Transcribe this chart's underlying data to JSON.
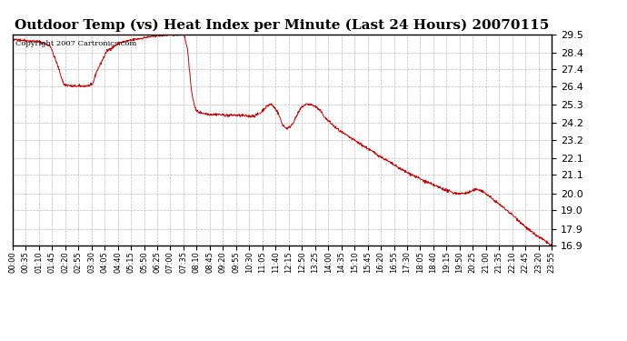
{
  "title": "Outdoor Temp (vs) Heat Index per Minute (Last 24 Hours) 20070115",
  "copyright_text": "Copyright 2007 Cartronics.com",
  "line_color": "#CC0000",
  "background_color": "#FFFFFF",
  "plot_bg_color": "#FFFFFF",
  "grid_color": "#AAAAAA",
  "ylim": [
    16.9,
    29.5
  ],
  "yticks": [
    16.9,
    17.9,
    19.0,
    20.0,
    21.1,
    22.1,
    23.2,
    24.2,
    25.3,
    26.4,
    27.4,
    28.4,
    29.5
  ],
  "xtick_labels": [
    "00:00",
    "00:35",
    "01:10",
    "01:45",
    "02:20",
    "02:55",
    "03:30",
    "04:05",
    "04:40",
    "05:15",
    "05:50",
    "06:25",
    "07:00",
    "07:35",
    "08:10",
    "08:45",
    "09:20",
    "09:55",
    "10:30",
    "11:05",
    "11:40",
    "12:15",
    "12:50",
    "13:25",
    "14:00",
    "14:35",
    "15:10",
    "15:45",
    "16:20",
    "16:55",
    "17:30",
    "18:05",
    "18:40",
    "19:15",
    "19:50",
    "20:25",
    "21:00",
    "21:35",
    "22:10",
    "22:45",
    "23:20",
    "23:55"
  ],
  "num_points": 1440,
  "seed": 42,
  "title_fontsize": 11,
  "copyright_fontsize": 6,
  "ytick_fontsize": 8,
  "xtick_fontsize": 6
}
